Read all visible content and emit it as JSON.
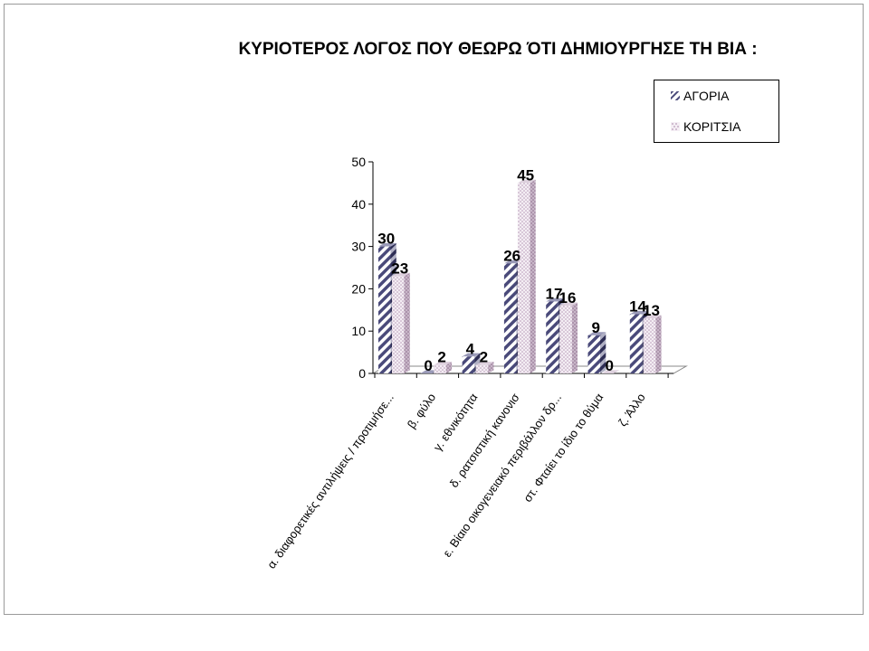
{
  "chart_data": {
    "type": "bar",
    "title": "ΚΥΡΙΟΤΕΡΟΣ ΛΟΓΟΣ ΠΟΥ ΘΕΩΡΩ ΌΤΙ ΔΗΜΙΟΥΡΓΗΣΕ ΤΗ ΒΙΑ :",
    "categories": [
      "α. διαφορετικές αντιλήψεις / προτιμήσε...",
      "β. φύλο",
      "γ. εθνικότητα",
      "δ. ρατσιστική κανονισ",
      "ε. Βίαιο οικογενειακό περιβάλλον δρ...",
      "στ. Φταίει το ίδιο το θύμα",
      "ζ. Άλλο"
    ],
    "series": [
      {
        "name": "ΑΓΟΡΙΑ",
        "values": [
          30,
          0,
          4,
          26,
          17,
          9,
          14
        ],
        "color": "#4a4a7a",
        "pattern": "diagonal-hatch"
      },
      {
        "name": "ΚΟΡΙΤΣΙΑ",
        "values": [
          23,
          2,
          2,
          45,
          16,
          0,
          13
        ],
        "color": "#c9b0c9",
        "pattern": "dotted"
      }
    ],
    "ylim": [
      0,
      50
    ],
    "yticks": [
      0,
      10,
      20,
      30,
      40,
      50
    ],
    "xlabel": "",
    "ylabel": "",
    "grid": false,
    "legend_position": "top-right",
    "style": "3d-clustered-column"
  }
}
